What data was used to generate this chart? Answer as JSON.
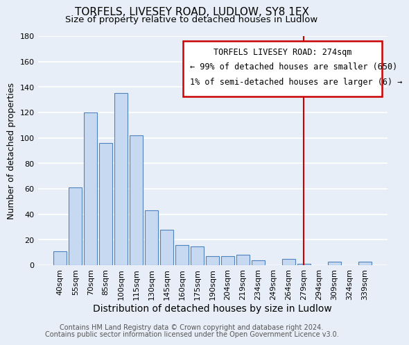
{
  "title": "TORFELS, LIVESEY ROAD, LUDLOW, SY8 1EX",
  "subtitle": "Size of property relative to detached houses in Ludlow",
  "xlabel": "Distribution of detached houses by size in Ludlow",
  "ylabel": "Number of detached properties",
  "bar_labels": [
    "40sqm",
    "55sqm",
    "70sqm",
    "85sqm",
    "100sqm",
    "115sqm",
    "130sqm",
    "145sqm",
    "160sqm",
    "175sqm",
    "190sqm",
    "204sqm",
    "219sqm",
    "234sqm",
    "249sqm",
    "264sqm",
    "279sqm",
    "294sqm",
    "309sqm",
    "324sqm",
    "339sqm"
  ],
  "bar_heights": [
    11,
    61,
    120,
    96,
    135,
    102,
    43,
    28,
    16,
    15,
    7,
    7,
    8,
    4,
    0,
    5,
    1,
    0,
    3,
    0,
    3
  ],
  "bar_color": "#c6d9f1",
  "bar_edge_color": "#4f81bd",
  "ylim": [
    0,
    180
  ],
  "yticks": [
    0,
    20,
    40,
    60,
    80,
    100,
    120,
    140,
    160,
    180
  ],
  "vline_x": 16,
  "vline_color": "#cc0000",
  "annotation_title": "TORFELS LIVESEY ROAD: 274sqm",
  "annotation_line1": "← 99% of detached houses are smaller (650)",
  "annotation_line2": "1% of semi-detached houses are larger (6) →",
  "footer1": "Contains HM Land Registry data © Crown copyright and database right 2024.",
  "footer2": "Contains public sector information licensed under the Open Government Licence v3.0.",
  "background_color": "#e8eef7",
  "box_color": "#cc0000",
  "title_fontsize": 11,
  "subtitle_fontsize": 9.5,
  "ylabel_fontsize": 9,
  "xlabel_fontsize": 10,
  "tick_fontsize": 8,
  "footer_fontsize": 7,
  "annot_title_fontsize": 8.5,
  "annot_body_fontsize": 8.5
}
